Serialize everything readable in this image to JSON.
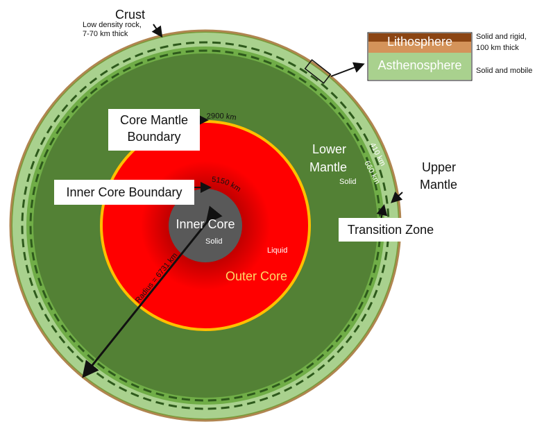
{
  "colors": {
    "crust": "#7a9a3a",
    "upper_mantle": "#a9d18e",
    "lower_mantle": "#538135",
    "outer_core_edge": "#ffc000",
    "outer_core": "#ff0000",
    "outer_core_dark": "#6b0000",
    "inner_core": "#595959",
    "lithosphere": "#8b4513",
    "lithosphere_light": "#d4935a",
    "asthenosphere": "#a9d18e",
    "outer_core_label": "#ffd966"
  },
  "labels": {
    "crust_title": "Crust",
    "crust_desc_1": "Low density rock,",
    "crust_desc_2": "7-70 km thick",
    "core_mantle_1": "Core Mantle",
    "core_mantle_2": "Boundary",
    "cmb_depth": "2900 km",
    "inner_core_boundary": "Inner Core Boundary",
    "icb_depth": "5150 km",
    "inner_core": "Inner Core",
    "inner_core_state": "Solid",
    "outer_core": "Outer Core",
    "outer_core_state": "Liquid",
    "lower_mantle_1": "Lower",
    "lower_mantle_2": "Mantle",
    "lower_mantle_state": "Solid",
    "upper_mantle_1": "Upper",
    "upper_mantle_2": "Mantle",
    "transition_zone": "Transition Zone",
    "depth_410": "410 km",
    "depth_660": "660 km",
    "radius": "Radius = 6731 km"
  },
  "inset": {
    "lithosphere": "Lithosphere",
    "asthenosphere": "Asthenosphere",
    "lith_desc_1": "Solid and rigid,",
    "lith_desc_2": "100 km thick",
    "asth_desc": "Solid and mobile"
  }
}
